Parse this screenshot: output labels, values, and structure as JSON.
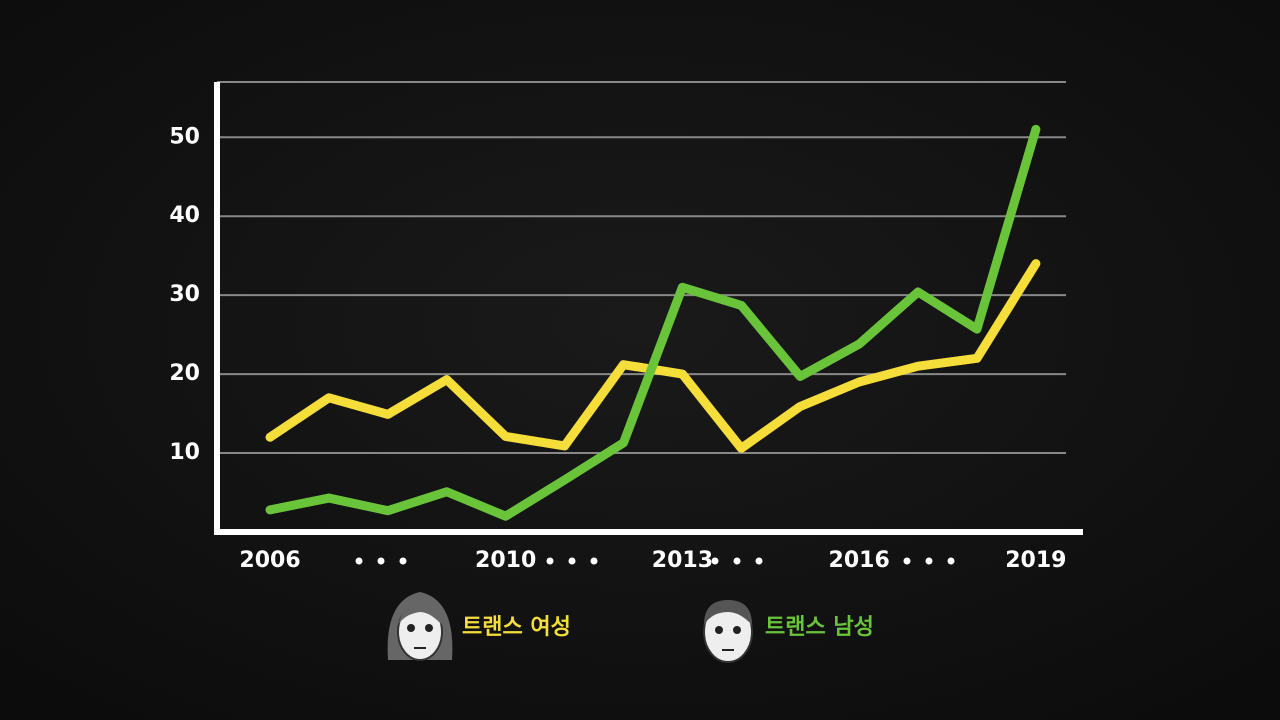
{
  "chart_data": {
    "type": "line",
    "x": [
      2006,
      2007,
      2008,
      2009,
      2010,
      2011,
      2012,
      2013,
      2014,
      2015,
      2016,
      2017,
      2018,
      2019
    ],
    "series": [
      {
        "name": "트랜스 여성",
        "color": "#f5dd3a",
        "values": [
          12,
          17,
          14.9,
          19.3,
          12.1,
          10.9,
          21.2,
          20,
          10.6,
          15.9,
          19,
          21,
          22,
          34
        ]
      },
      {
        "name": "트랜스 남성",
        "color": "#6ac43a",
        "values": [
          2.8,
          4.3,
          2.7,
          5.1,
          2,
          6.6,
          11.3,
          31,
          28.7,
          19.7,
          23.8,
          30.4,
          25.7,
          51
        ]
      }
    ],
    "xlim": [
      2005.1,
      2019.8
    ],
    "xticks": [
      2006,
      2010,
      2013,
      2016,
      2019
    ],
    "ylim": [
      0,
      57
    ],
    "yticks": [
      10,
      20,
      30,
      40,
      50
    ],
    "grid": true
  }
}
